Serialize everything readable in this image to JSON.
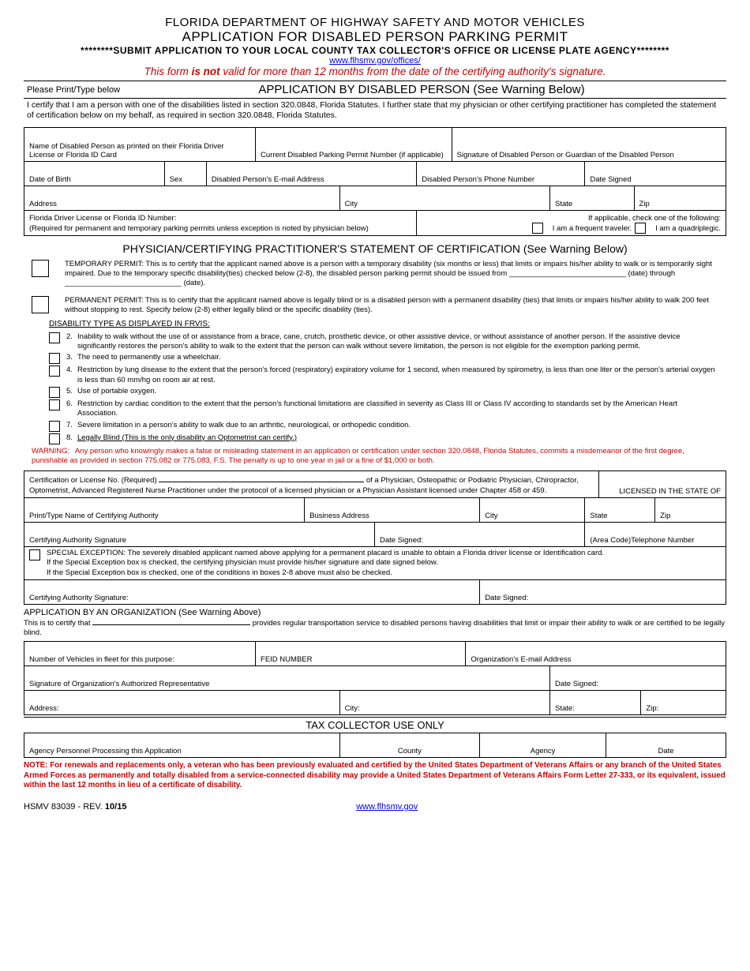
{
  "header": {
    "dept": "FLORIDA DEPARTMENT OF HIGHWAY SAFETY AND MOTOR VEHICLES",
    "title": "APPLICATION FOR DISABLED PERSON PARKING PERMIT",
    "submit": "********SUBMIT APPLICATION TO YOUR LOCAL COUNTY TAX COLLECTOR'S OFFICE OR LICENSE PLATE AGENCY********",
    "link": "www.flhsmv.gov/offices/",
    "redwarn_pre": "This form ",
    "redwarn_bold": "is not",
    "redwarn_post": " valid for more than 12 months from the date of the certifying authority's signature."
  },
  "section1": {
    "left": "Please Print/Type below",
    "center": "APPLICATION BY DISABLED PERSON (See Warning Below)",
    "cert": "I certify that I am a person with one of the disabilities listed in section 320.0848, Florida Statutes.  I further state that my physician or other certifying practitioner has completed the statement of certification below on my behalf, as required in section 320.0848, Florida Statutes."
  },
  "applicant": {
    "name_label": "Name of Disabled Person as printed on their Florida Driver License or Florida ID Card",
    "permit_label": "Current Disabled Parking Permit Number (if applicable)",
    "sig_label": "Signature of Disabled Person or Guardian of the Disabled Person",
    "dob": "Date of Birth",
    "sex": "Sex",
    "email": "Disabled Person's E-mail Address",
    "phone": "Disabled Person's Phone Number",
    "datesigned": "Date Signed",
    "address": "Address",
    "city": "City",
    "state": "State",
    "zip": "Zip",
    "dl_label": "Florida Driver License or Florida ID Number:\n(Required for permanent and temporary parking permits unless exception is noted by physician below)",
    "check_label": "If applicable, check one of the following:",
    "frequent": "I am a frequent traveler.",
    "quad": "I am a quadriplegic."
  },
  "physician": {
    "header": "PHYSICIAN/CERTIFYING PRACTITIONER'S STATEMENT OF CERTIFICATION (See Warning Below)",
    "temp": "TEMPORARY PERMIT:  This is to certify that the applicant named above is a person with a temporary disability (six months or less) that limits or impairs his/her ability to walk or is temporarily sight impaired.  Due to the temporary specific disability(ties) checked below (2-8), the disabled person parking permit should be issued from ____________________________ (date) through ____________________________ (date).",
    "perm": "PERMANENT PERMIT:  This is to certify that the applicant named above is legally blind or is a disabled person with a permanent disability (ties) that limits or impairs his/her ability to walk 200 feet without stopping to rest.  Specify below (2-8) either legally blind or the specific disability (ties).",
    "dis_label": "DISABILITY TYPE AS DISPLAYED IN FRVIS:",
    "items": [
      {
        "n": "2.",
        "t": "Inability to walk without the use of or assistance from a brace, cane, crutch, prosthetic device, or other assistive device, or without assistance of another person.  If the assistive device significantly restores the person's ability to walk to the extent that the person can walk without severe limitation, the person is not eligible for the exemption parking permit."
      },
      {
        "n": "3.",
        "t": "The need to permanently use a wheelchair."
      },
      {
        "n": "4.",
        "t": "Restriction by lung disease to the extent that the person's forced (respiratory) expiratory volume for 1 second, when measured by spirometry, is less than one liter or the person's arterial oxygen is less than 60 mm/hg on room air at rest."
      },
      {
        "n": "5.",
        "t": "Use of portable oxygen."
      },
      {
        "n": "6.",
        "t": "Restriction by cardiac condition to the extent that the person's functional limitations are classified in severity as Class III or Class IV according to standards set by the American Heart Association."
      },
      {
        "n": "7.",
        "t": "Severe limitation in a person's ability to walk due to an arthritic, neurological, or orthopedic condition."
      },
      {
        "n": "8.",
        "t": "Legally Blind (This is the only disability an Optometrist can certify.)",
        "u": true
      }
    ],
    "warn_lbl": "WARNING:",
    "warn_txt": "Any person who knowingly makes a false or misleading statement in an application or certification under section 320.0848, Florida Statutes, commits a misdemeanor of the first degree, punishable as provided in section 775.082 or 775.083, F.S.  The penalty is up to one year in jail or a fine of $1,000 or both."
  },
  "certauth": {
    "row1_a": "Certification or License No.  (Required) ",
    "row1_b": " of a Physician, Osteopathic or Podiatric Physician, Chiropractor, Optometrist, Advanced Registered Nurse Practitioner under the protocol of a licensed physician or a Physician Assistant licensed under Chapter 458 or 459.",
    "licensed": "LICENSED IN THE STATE OF",
    "print_name": "Print/Type Name of Certifying Authority",
    "bus_addr": "Business Address",
    "city": "City",
    "state": "State",
    "zip": "Zip",
    "sig": "Certifying Authority Signature",
    "date": "Date Signed:",
    "tel": "(Area Code)Telephone Number",
    "special": "SPECIAL EXCEPTION: The severely disabled applicant named above applying for a permanent placard is unable to obtain a Florida driver license or Identification card.\nIf the Special Exception box is checked, the certifying physician must provide his/her signature and date signed below.\nIf the Special Exception box is checked, one of the conditions in boxes 2-8 above must also be checked.",
    "sig2": "Certifying Authority Signature:",
    "date2": "Date Signed:"
  },
  "org": {
    "title": "APPLICATION BY AN ORGANIZATION (See Warning Above)",
    "cert_a": "This is to certify that ",
    "cert_b": " provides regular transportation service to disabled persons having disabilities that limit or impair their ability to walk or are certified to be legally blind.",
    "vehicles": "Number of Vehicles in fleet for this purpose:",
    "feid": "FEID NUMBER",
    "email": "Organization's E-mail Address",
    "sig": "Signature of Organization's Authorized Representative",
    "date": "Date Signed:",
    "addr": "Address:",
    "city": "City:",
    "state": "State:",
    "zip": "Zip:"
  },
  "tax": {
    "header": "TAX COLLECTOR USE ONLY",
    "personnel": "Agency Personnel Processing  this Application",
    "county": "County",
    "agency": "Agency",
    "date": "Date"
  },
  "note": "NOTE: For renewals and replacements only, a veteran who has been previously evaluated and certified by the United States Department of Veterans Affairs or any branch of the United States Armed Forces as permanently and totally disabled from a service-connected disability may provide a United States Department of Veterans Affairs Form Letter 27-333, or its equivalent, issued within the last 12 months in lieu of a certificate of disability.",
  "footer": {
    "form": "HSMV 83039 - REV. ",
    "rev": "10/15",
    "link": "www.flhsmv.gov"
  }
}
